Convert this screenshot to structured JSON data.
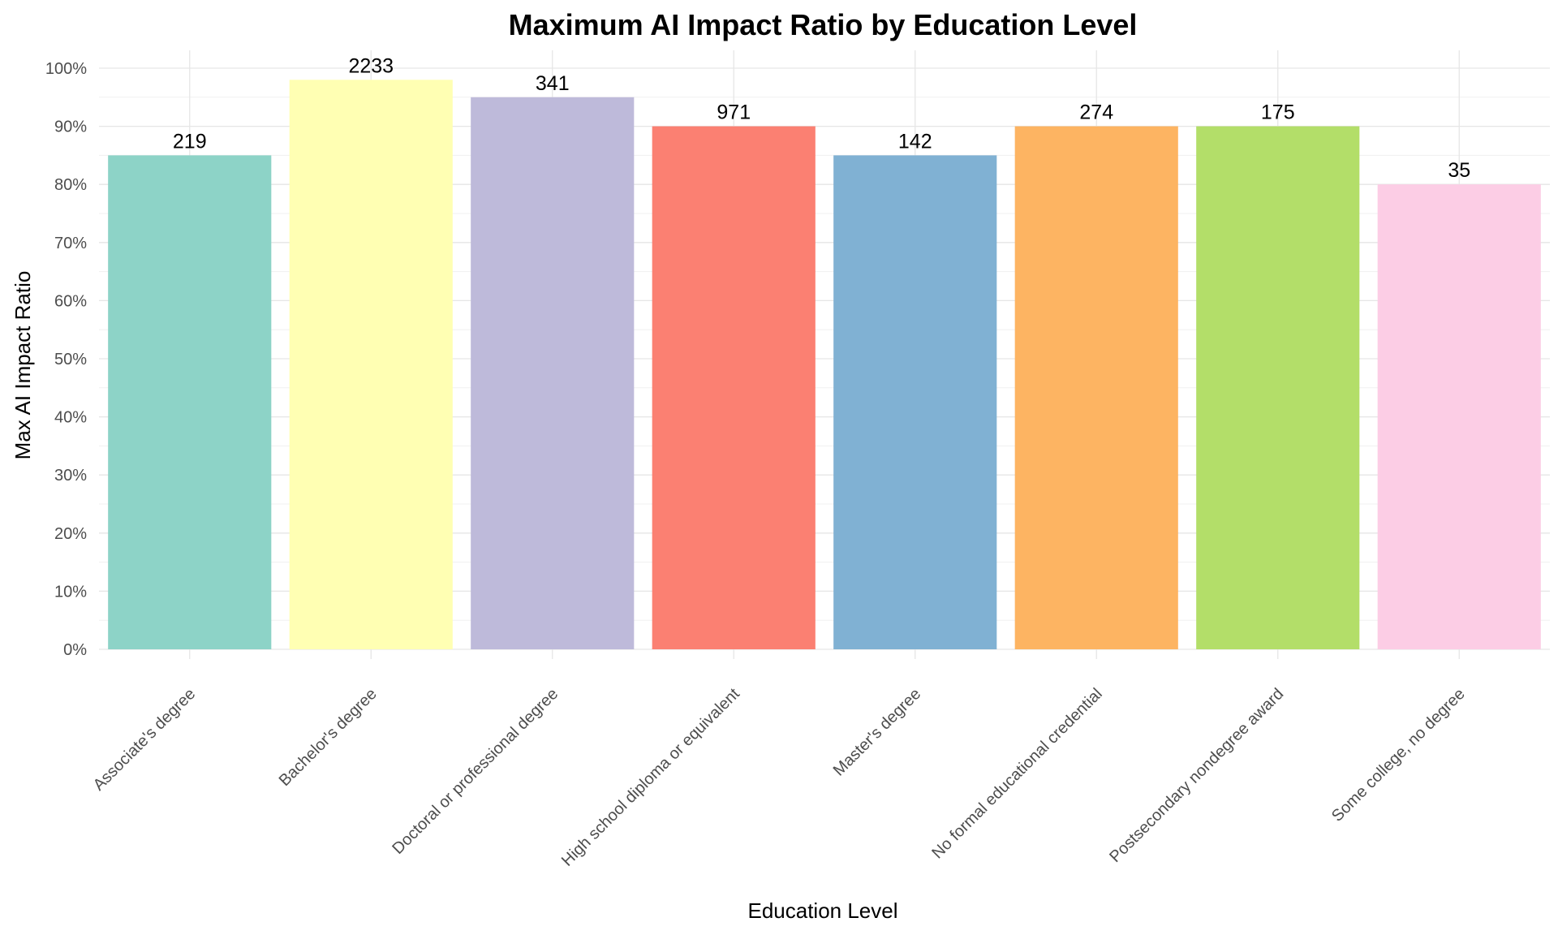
{
  "chart_data": {
    "type": "bar",
    "title": "Maximum AI Impact Ratio by Education Level",
    "xlabel": "Education Level",
    "ylabel": "Max AI Impact Ratio",
    "categories": [
      "Associate's degree",
      "Bachelor's degree",
      "Doctoral or professional degree",
      "High school diploma or equivalent",
      "Master's degree",
      "No formal educational credential",
      "Postsecondary nondegree award",
      "Some college, no degree"
    ],
    "values": [
      0.85,
      0.98,
      0.95,
      0.9,
      0.85,
      0.9,
      0.9,
      0.8
    ],
    "data_labels": [
      "219",
      "2233",
      "341",
      "971",
      "142",
      "274",
      "175",
      "35"
    ],
    "colors": [
      "#8DD3C7",
      "#FFFFB3",
      "#BEBADA",
      "#FB8072",
      "#80B1D3",
      "#FDB462",
      "#B3DE69",
      "#FCCDE5"
    ],
    "ylim": [
      0,
      1
    ],
    "yticks": [
      0,
      0.1,
      0.2,
      0.3,
      0.4,
      0.5,
      0.6,
      0.7,
      0.8,
      0.9,
      1.0
    ],
    "ytick_labels": [
      "0%",
      "10%",
      "20%",
      "30%",
      "40%",
      "50%",
      "60%",
      "70%",
      "80%",
      "90%",
      "100%"
    ],
    "grid": true,
    "legend": "none"
  }
}
